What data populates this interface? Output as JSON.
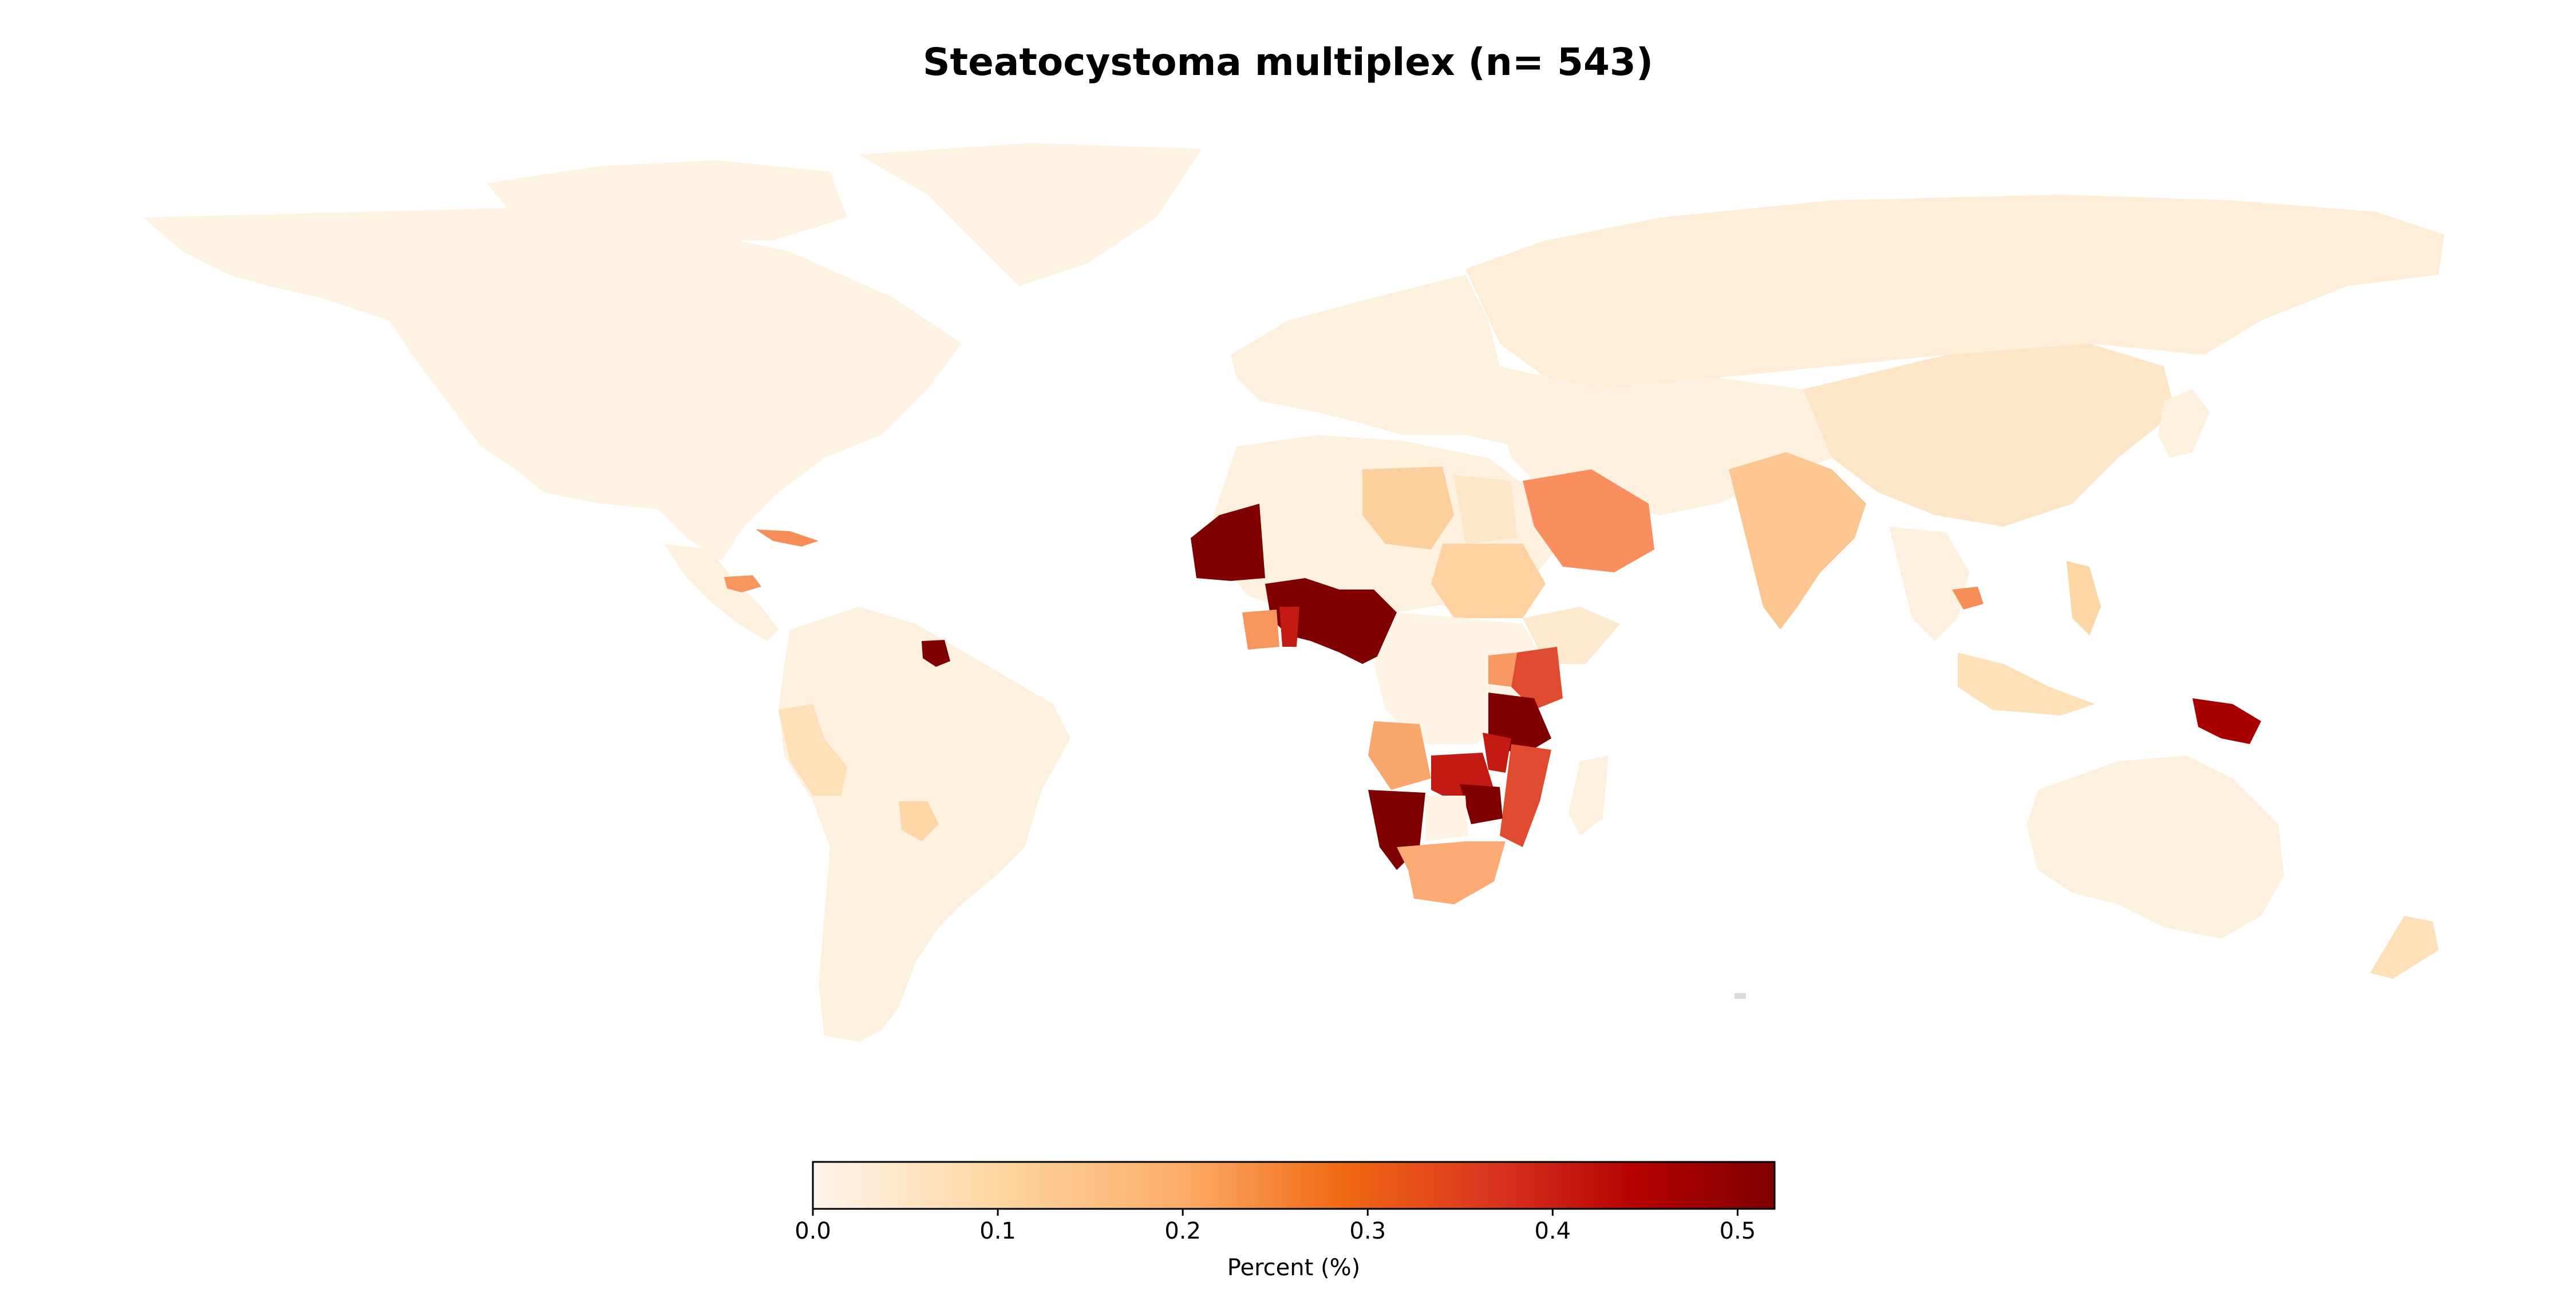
{
  "title": "Steatocystoma multiplex (n= 543)",
  "colorbar": {
    "label": "Percent (%)",
    "ticks": [
      "0.0",
      "0.1",
      "0.2",
      "0.3",
      "0.4",
      "0.5"
    ],
    "tick_values": [
      0.0,
      0.1,
      0.2,
      0.3,
      0.4,
      0.5
    ],
    "range": [
      0.0,
      0.52
    ],
    "colormap": [
      "#fff5eb",
      "#fdd49e",
      "#fdae6b",
      "#f16913",
      "#d7301f",
      "#b30000",
      "#7f0000"
    ]
  },
  "chart_data": {
    "type": "choropleth",
    "title": "Steatocystoma multiplex (n= 543)",
    "colorbar_label": "Percent (%)",
    "value_range": [
      0.0,
      0.52
    ],
    "no_data_color": "#d9d9d9",
    "regions": [
      {
        "region": "North America",
        "value": 0.01
      },
      {
        "region": "Greenland",
        "value": 0.01
      },
      {
        "region": "Central America",
        "value": 0.02
      },
      {
        "region": "Cuba",
        "value": 0.26
      },
      {
        "region": "Honduras",
        "value": 0.22
      },
      {
        "region": "Suriname",
        "value": 0.52
      },
      {
        "region": "South America",
        "value": 0.02
      },
      {
        "region": "Peru",
        "value": 0.07
      },
      {
        "region": "Paraguay",
        "value": 0.09
      },
      {
        "region": "Europe",
        "value": 0.02
      },
      {
        "region": "Russia",
        "value": 0.02
      },
      {
        "region": "Northern Africa",
        "value": 0.03
      },
      {
        "region": "Libya",
        "value": 0.11
      },
      {
        "region": "Egypt",
        "value": 0.05
      },
      {
        "region": "Sudan",
        "value": 0.1
      },
      {
        "region": "Saudi Arabia",
        "value": 0.24
      },
      {
        "region": "Mauritania",
        "value": 0.52
      },
      {
        "region": "Burkina Faso",
        "value": 0.52
      },
      {
        "region": "Niger",
        "value": 0.52
      },
      {
        "region": "Nigeria",
        "value": 0.52
      },
      {
        "region": "Cameroon",
        "value": 0.52
      },
      {
        "region": "Côte d'Ivoire",
        "value": 0.23
      },
      {
        "region": "Ghana",
        "value": 0.45
      },
      {
        "region": "Central Africa",
        "value": 0.02
      },
      {
        "region": "Kenya",
        "value": 0.37
      },
      {
        "region": "Uganda",
        "value": 0.25
      },
      {
        "region": "Tanzania",
        "value": 0.52
      },
      {
        "region": "Angola",
        "value": 0.2
      },
      {
        "region": "Zambia",
        "value": 0.45
      },
      {
        "region": "Malawi",
        "value": 0.45
      },
      {
        "region": "Mozambique",
        "value": 0.37
      },
      {
        "region": "Zimbabwe",
        "value": 0.52
      },
      {
        "region": "Namibia",
        "value": 0.52
      },
      {
        "region": "South Africa",
        "value": 0.22
      },
      {
        "region": "Madagascar",
        "value": 0.02
      },
      {
        "region": "India",
        "value": 0.14
      },
      {
        "region": "China",
        "value": 0.04
      },
      {
        "region": "Cambodia",
        "value": 0.26
      },
      {
        "region": "Philippines",
        "value": 0.09
      },
      {
        "region": "Indonesia",
        "value": 0.07
      },
      {
        "region": "Papua New Guinea",
        "value": 0.47
      },
      {
        "region": "Australia",
        "value": 0.02
      },
      {
        "region": "New Zealand",
        "value": 0.07
      }
    ]
  }
}
